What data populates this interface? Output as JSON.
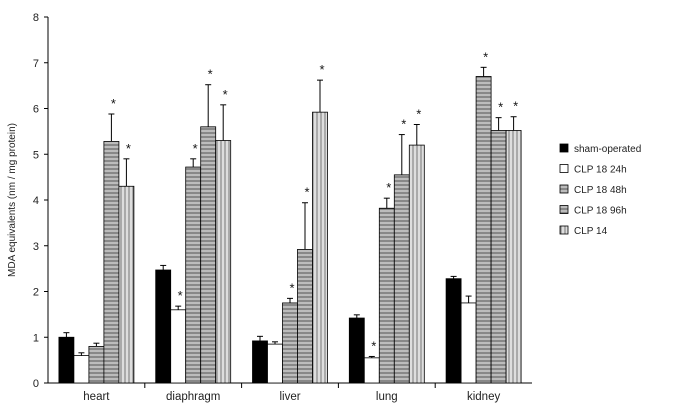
{
  "chart_data": {
    "type": "bar",
    "title": "",
    "xlabel": "",
    "ylabel": "MDA equivalents (nm / mg protein)",
    "ylim": [
      0,
      8
    ],
    "yticks": [
      0,
      1,
      2,
      3,
      4,
      5,
      6,
      7,
      8
    ],
    "grid": false,
    "legend_position": "right",
    "categories": [
      "heart",
      "diaphragm",
      "liver",
      "lung",
      "kidney"
    ],
    "series": [
      {
        "name": "sham-operated",
        "fill": "#000000",
        "pattern": "solid",
        "values": [
          1.0,
          2.47,
          0.92,
          1.42,
          2.28
        ],
        "errors": [
          0.1,
          0.1,
          0.1,
          0.07,
          0.05
        ],
        "significant": [
          false,
          false,
          false,
          false,
          false
        ]
      },
      {
        "name": "CLP 18 24h",
        "fill": "#ffffff",
        "pattern": "solid",
        "values": [
          0.6,
          1.6,
          0.85,
          0.55,
          1.75
        ],
        "errors": [
          0.06,
          0.08,
          0.05,
          0.03,
          0.15
        ],
        "significant": [
          false,
          true,
          false,
          true,
          false
        ]
      },
      {
        "name": "CLP 18 48h",
        "fill": "#b8b8b8",
        "pattern": "hlines",
        "values": [
          0.8,
          4.72,
          1.75,
          3.82,
          6.7
        ],
        "errors": [
          0.07,
          0.18,
          0.1,
          0.22,
          0.2
        ],
        "significant": [
          false,
          true,
          true,
          true,
          true
        ]
      },
      {
        "name": "CLP 18 96h",
        "fill": "#b8b8b8",
        "pattern": "hlines",
        "values": [
          5.28,
          5.6,
          2.92,
          4.55,
          5.52
        ],
        "errors": [
          0.6,
          0.92,
          1.02,
          0.88,
          0.28
        ],
        "significant": [
          true,
          true,
          true,
          true,
          true
        ]
      },
      {
        "name": "CLP 14",
        "fill": "#d8d8d8",
        "pattern": "vlines",
        "values": [
          4.3,
          5.3,
          5.92,
          5.2,
          5.52
        ],
        "errors": [
          0.6,
          0.78,
          0.7,
          0.45,
          0.3
        ],
        "significant": [
          true,
          true,
          true,
          true,
          true
        ]
      }
    ],
    "significance_marker": "*"
  }
}
